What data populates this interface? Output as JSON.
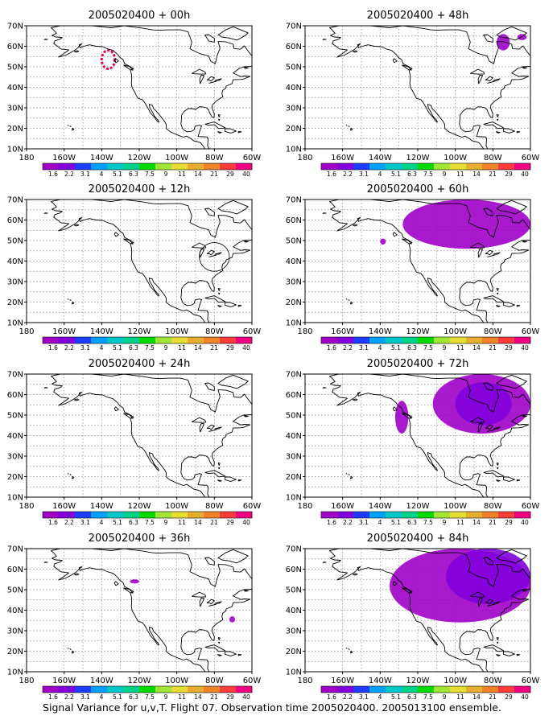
{
  "caption": "Signal Variance for u,v,T. Flight 07. Observation time 2005020400. 2005013100 ensemble.",
  "x_ticks": [
    "180",
    "160W",
    "140W",
    "120W",
    "100W",
    "80W",
    "60W"
  ],
  "y_ticks": [
    "10N",
    "20N",
    "30N",
    "40N",
    "50N",
    "60N",
    "70N"
  ],
  "colorbar": {
    "labels": [
      "1.6",
      "2.2",
      "3.1",
      "4",
      "5.1",
      "6.3",
      "7.5",
      "9",
      "11",
      "14",
      "21",
      "29",
      "40"
    ],
    "colors": [
      "#a000c8",
      "#8200dc",
      "#1e3cff",
      "#00a0ff",
      "#00c8c8",
      "#00d28c",
      "#00dc00",
      "#a0e632",
      "#e6dc32",
      "#e6af2d",
      "#f08228",
      "#fa3c3c",
      "#f00082"
    ]
  },
  "chart_data": [
    {
      "type": "heatmap",
      "title": "2005020400 + 00h",
      "xlim": [
        "180",
        "60W"
      ],
      "ylim": [
        "10N",
        "70N"
      ],
      "features": [
        {
          "kind": "ring",
          "color": "#e0005a",
          "lon": [
            -140,
            -133
          ],
          "lat": [
            49,
            58
          ]
        }
      ]
    },
    {
      "type": "heatmap",
      "title": "2005020400 + 12h",
      "xlim": [
        "180",
        "60W"
      ],
      "ylim": [
        "10N",
        "70N"
      ],
      "features": [
        {
          "kind": "circle-outline",
          "color": "#000000",
          "lon": [
            -88,
            -72
          ],
          "lat": [
            35,
            49
          ]
        }
      ]
    },
    {
      "type": "heatmap",
      "title": "2005020400 + 24h",
      "xlim": [
        "180",
        "60W"
      ],
      "ylim": [
        "10N",
        "70N"
      ],
      "features": []
    },
    {
      "type": "heatmap",
      "title": "2005020400 + 36h",
      "xlim": [
        "180",
        "60W"
      ],
      "ylim": [
        "10N",
        "70N"
      ],
      "features": [
        {
          "kind": "blob",
          "color": "#a000c8",
          "lon": [
            -125,
            -120
          ],
          "lat": [
            53,
            55
          ]
        },
        {
          "kind": "blob",
          "color": "#a000c8",
          "lon": [
            -72,
            -69
          ],
          "lat": [
            34,
            37
          ]
        }
      ]
    },
    {
      "type": "heatmap",
      "title": "2005020400 + 48h",
      "xlim": [
        "180",
        "60W"
      ],
      "ylim": [
        "10N",
        "70N"
      ],
      "features": [
        {
          "kind": "blob",
          "color": "#a000c8",
          "lon": [
            -78,
            -71
          ],
          "lat": [
            58,
            66
          ]
        },
        {
          "kind": "blob",
          "color": "#a000c8",
          "lon": [
            -67,
            -62
          ],
          "lat": [
            63,
            66
          ]
        }
      ]
    },
    {
      "type": "heatmap",
      "title": "2005020400 + 60h",
      "xlim": [
        "180",
        "60W"
      ],
      "ylim": [
        "10N",
        "70N"
      ],
      "features": [
        {
          "kind": "blob",
          "color": "#a000c8",
          "lon": [
            -140,
            -137
          ],
          "lat": [
            48,
            51
          ]
        },
        {
          "kind": "blob",
          "color": "#a000c8",
          "lon": [
            -128,
            -60
          ],
          "lat": [
            46,
            70
          ]
        }
      ]
    },
    {
      "type": "heatmap",
      "title": "2005020400 + 72h",
      "xlim": [
        "180",
        "60W"
      ],
      "ylim": [
        "10N",
        "70N"
      ],
      "features": [
        {
          "kind": "blob",
          "color": "#a000c8",
          "lon": [
            -132,
            -125
          ],
          "lat": [
            41,
            57
          ]
        },
        {
          "kind": "blob",
          "color": "#a000c8",
          "lon": [
            -112,
            -60
          ],
          "lat": [
            41,
            70
          ]
        },
        {
          "kind": "blob",
          "color": "#8200dc",
          "lon": [
            -100,
            -70
          ],
          "lat": [
            45,
            66
          ]
        }
      ]
    },
    {
      "type": "heatmap",
      "title": "2005020400 + 84h",
      "xlim": [
        "180",
        "60W"
      ],
      "ylim": [
        "10N",
        "70N"
      ],
      "features": [
        {
          "kind": "blob",
          "color": "#a000c8",
          "lon": [
            -135,
            -60
          ],
          "lat": [
            34,
            70
          ]
        },
        {
          "kind": "blob",
          "color": "#8200dc",
          "lon": [
            -105,
            -60
          ],
          "lat": [
            43,
            70
          ]
        }
      ]
    }
  ]
}
